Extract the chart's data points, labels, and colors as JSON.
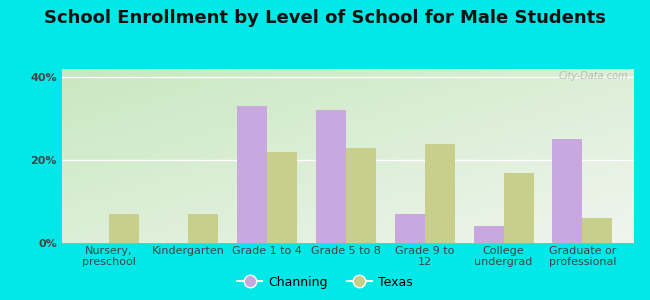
{
  "title": "School Enrollment by Level of School for Male Students",
  "categories": [
    "Nursery,\npreschool",
    "Kindergarten",
    "Grade 1 to 4",
    "Grade 5 to 8",
    "Grade 9 to\n12",
    "College\nundergrad",
    "Graduate or\nprofessional"
  ],
  "channing": [
    0,
    0,
    33,
    32,
    7,
    4,
    25
  ],
  "texas": [
    7,
    7,
    22,
    23,
    24,
    17,
    6
  ],
  "channing_color": "#c9a8df",
  "texas_color": "#c8cf8a",
  "ylim": [
    0,
    42
  ],
  "yticks": [
    0,
    20,
    40
  ],
  "ytick_labels": [
    "0%",
    "20%",
    "40%"
  ],
  "bar_width": 0.38,
  "outer_bg": "#00e8e8",
  "legend_labels": [
    "Channing",
    "Texas"
  ],
  "watermark": "City-Data.com",
  "title_fontsize": 13,
  "label_fontsize": 8
}
